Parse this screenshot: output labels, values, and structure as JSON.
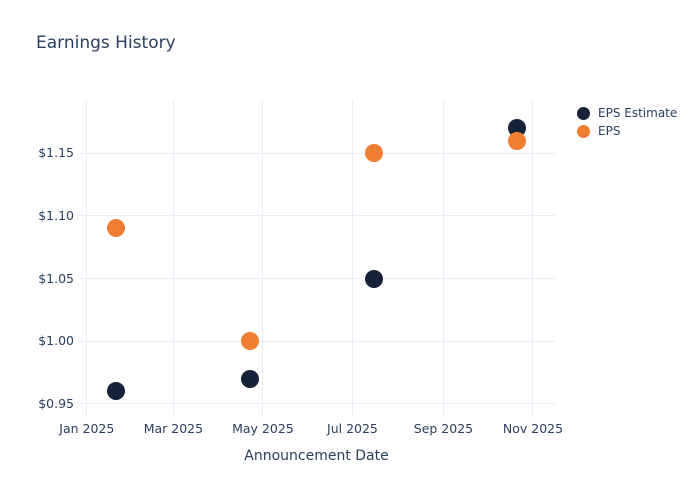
{
  "title": "Earnings History",
  "x_axis_title": "Announcement Date",
  "colors": {
    "text": "#2a3f5f",
    "gridline": "#e8eef7",
    "background": "#ffffff",
    "eps_estimate": "#152238",
    "eps": "#ef7e32"
  },
  "legend": {
    "position": "right",
    "items": [
      {
        "label": "EPS Estimate",
        "color": "#152238"
      },
      {
        "label": "EPS",
        "color": "#ef7e32"
      }
    ]
  },
  "chart_data": {
    "type": "scatter",
    "title": "Earnings History",
    "xlabel": "Announcement Date",
    "ylabel": "",
    "grid": true,
    "legend_position": "right",
    "x_range": [
      "2024-12-26",
      "2025-11-16"
    ],
    "y_range": [
      0.9396,
      1.1923
    ],
    "x_ticks": [
      {
        "date": "2025-01-01",
        "label": "Jan 2025"
      },
      {
        "date": "2025-03-01",
        "label": "Mar 2025"
      },
      {
        "date": "2025-05-01",
        "label": "May 2025"
      },
      {
        "date": "2025-07-01",
        "label": "Jul 2025"
      },
      {
        "date": "2025-09-01",
        "label": "Sep 2025"
      },
      {
        "date": "2025-11-01",
        "label": "Nov 2025"
      }
    ],
    "y_ticks": [
      {
        "value": 0.95,
        "label": "$0.95"
      },
      {
        "value": 1.0,
        "label": "$1.00"
      },
      {
        "value": 1.05,
        "label": "$1.05"
      },
      {
        "value": 1.1,
        "label": "$1.10"
      },
      {
        "value": 1.15,
        "label": "$1.15"
      }
    ],
    "series": [
      {
        "name": "EPS Estimate",
        "color": "#152238",
        "points": [
          {
            "date": "2025-01-21",
            "value": 0.96
          },
          {
            "date": "2025-04-22",
            "value": 0.97
          },
          {
            "date": "2025-07-16",
            "value": 1.05
          },
          {
            "date": "2025-10-21",
            "value": 1.17
          }
        ]
      },
      {
        "name": "EPS",
        "color": "#ef7e32",
        "points": [
          {
            "date": "2025-01-21",
            "value": 1.09
          },
          {
            "date": "2025-04-22",
            "value": 1.0
          },
          {
            "date": "2025-07-16",
            "value": 1.15
          },
          {
            "date": "2025-10-21",
            "value": 1.16
          }
        ]
      }
    ]
  }
}
